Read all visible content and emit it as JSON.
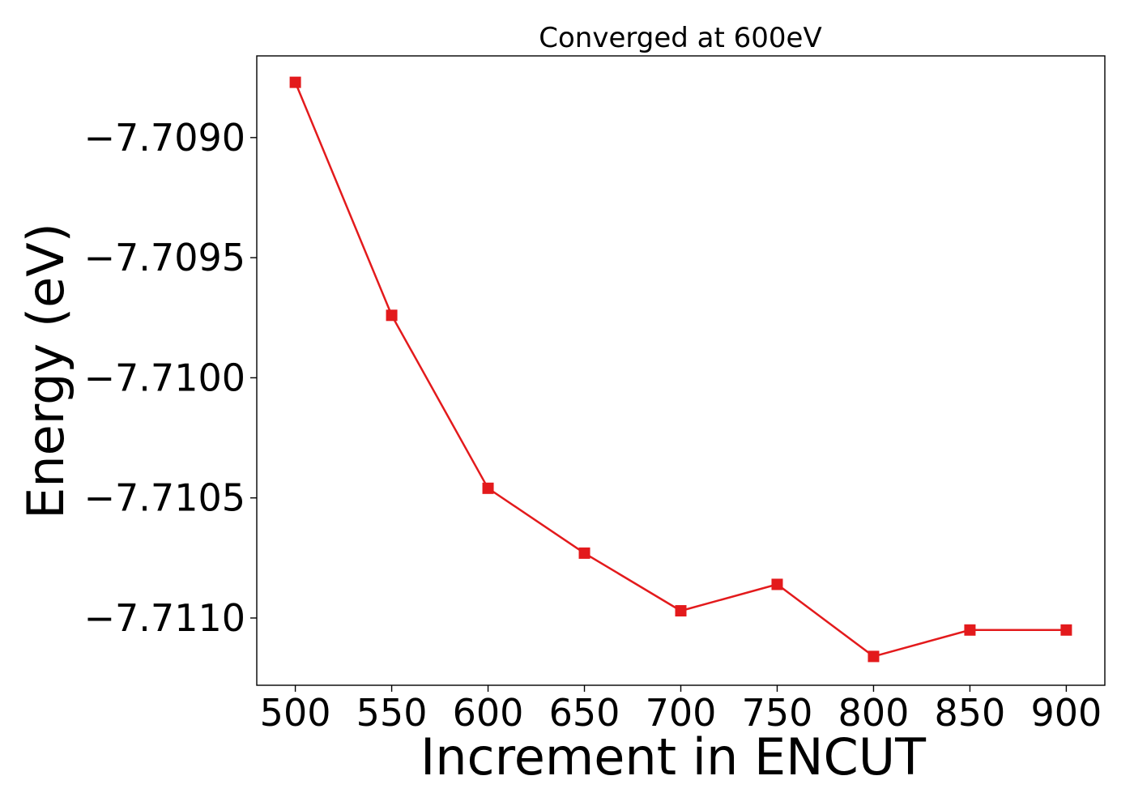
{
  "chart_data": {
    "type": "line",
    "title": "Converged at 600eV",
    "xlabel": "Increment in ENCUT",
    "ylabel": "Energy (eV)",
    "x": [
      500,
      550,
      600,
      650,
      700,
      750,
      800,
      850,
      900
    ],
    "series": [
      {
        "values": [
          -7.70877,
          -7.70974,
          -7.71046,
          -7.71073,
          -7.71097,
          -7.71086,
          -7.71116,
          -7.71105,
          -7.71105
        ],
        "color": "#e31a1c",
        "marker": "square"
      }
    ],
    "xticks": [
      500,
      550,
      600,
      650,
      700,
      750,
      800,
      850,
      900
    ],
    "xtick_labels": [
      "500",
      "550",
      "600",
      "650",
      "700",
      "750",
      "800",
      "850",
      "900"
    ],
    "yticks": [
      -7.709,
      -7.7095,
      -7.71,
      -7.7105,
      -7.711
    ],
    "ytick_labels": [
      "−7.7090",
      "−7.7095",
      "−7.7100",
      "−7.7105",
      "−7.7110"
    ],
    "xlim": [
      480,
      920
    ],
    "ylim": [
      -7.71128,
      -7.70866
    ],
    "grid": false,
    "legend": "none"
  }
}
